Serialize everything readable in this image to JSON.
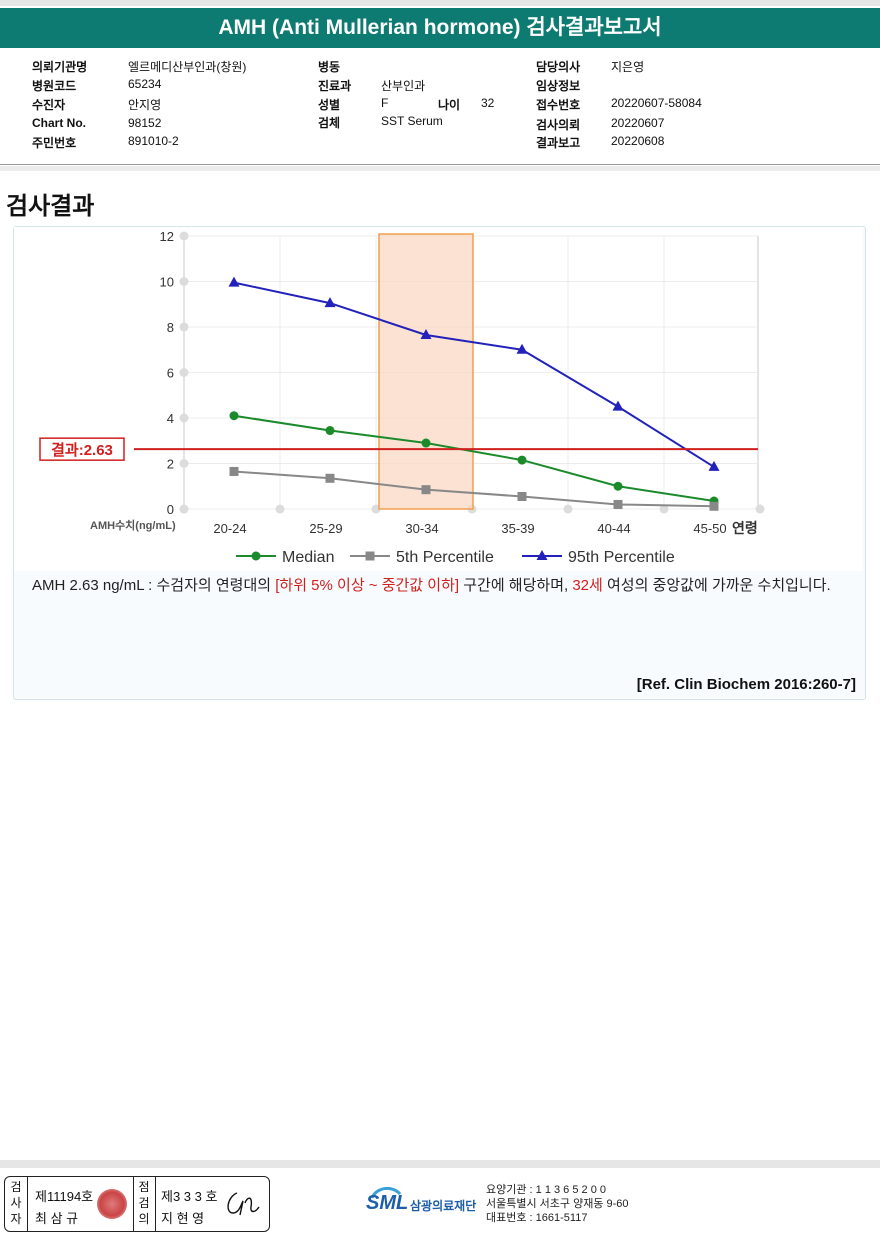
{
  "header": {
    "title": "AMH (Anti Mullerian hormone) 검사결과보고서"
  },
  "info": {
    "institution": {
      "label": "의뢰기관명",
      "value": "엘르메디산부인과(창원)"
    },
    "hospital_code": {
      "label": "병원코드",
      "value": "65234"
    },
    "examinee": {
      "label": "수진자",
      "value": "안지영"
    },
    "chart_no": {
      "label": "Chart No.",
      "value": "98152"
    },
    "resident_no": {
      "label": "주민번호",
      "value": "891010-2"
    },
    "ward": {
      "label": "병동",
      "value": ""
    },
    "department": {
      "label": "진료과",
      "value": "산부인과"
    },
    "sex": {
      "label": "성별",
      "value": "F"
    },
    "age": {
      "label": "나이",
      "value": "32"
    },
    "specimen": {
      "label": "검체",
      "value": "SST Serum"
    },
    "physician": {
      "label": "담당의사",
      "value": "지은영"
    },
    "clinical_info": {
      "label": "임상정보",
      "value": ""
    },
    "accession_no": {
      "label": "접수번호",
      "value": "20220607-58084"
    },
    "requested": {
      "label": "검사의뢰",
      "value": "20220607"
    },
    "reported": {
      "label": "결과보고",
      "value": "20220608"
    }
  },
  "section_title": "검사결과",
  "chart_data": {
    "type": "line",
    "categories": [
      "20-24",
      "25-29",
      "30-34",
      "35-39",
      "40-44",
      "45-50"
    ],
    "series": [
      {
        "name": "Median",
        "values": [
          4.1,
          3.45,
          2.9,
          2.15,
          1.0,
          0.35
        ],
        "color": "#1a8a2a",
        "marker": "circle"
      },
      {
        "name": "5th Percentile",
        "values": [
          1.65,
          1.35,
          0.85,
          0.55,
          0.2,
          0.12
        ],
        "color": "#888888",
        "marker": "square"
      },
      {
        "name": "95th Percentile",
        "values": [
          9.95,
          9.05,
          7.65,
          7.0,
          4.5,
          1.85
        ],
        "color": "#2222bb",
        "marker": "triangle"
      }
    ],
    "yticks": [
      0,
      2,
      4,
      6,
      8,
      10,
      12
    ],
    "ylim": [
      0,
      12
    ],
    "ylabel": "AMH수치(ng/mL)",
    "xlabel": "연령",
    "highlight_category": "30-34",
    "result": {
      "value": 2.63,
      "label": "결과:2.63",
      "color": "#d0201e"
    },
    "legend": "bottom",
    "grid": true
  },
  "interpretation": {
    "prefix": "AMH  2.63 ng/mL : 수검자의 연령대의 ",
    "range": "[하위 5% 이상 ~ 중간값 이하]",
    "middle": " 구간에 해당하며, ",
    "age": "32세",
    "suffix": " 여성의 중앙값에 가까운 수치입니다."
  },
  "reference": "[Ref. Clin Biochem 2016:260-7]",
  "footer": {
    "examiner_label": "검사자",
    "examiner_no": "제11194호",
    "examiner_name": "최 삼 규",
    "confirmer_label": "점검의",
    "confirmer_no": "제3 3 3 호",
    "confirmer_name": "지 현 영",
    "logo_mark": "SML",
    "logo_name": "삼광의료재단",
    "addr1": "요양기관 : 1 1 3 6 5 2 0 0",
    "addr2": "서울특별시 서초구 양재동 9-60",
    "addr3": "대표번호 : 1661-5117"
  }
}
